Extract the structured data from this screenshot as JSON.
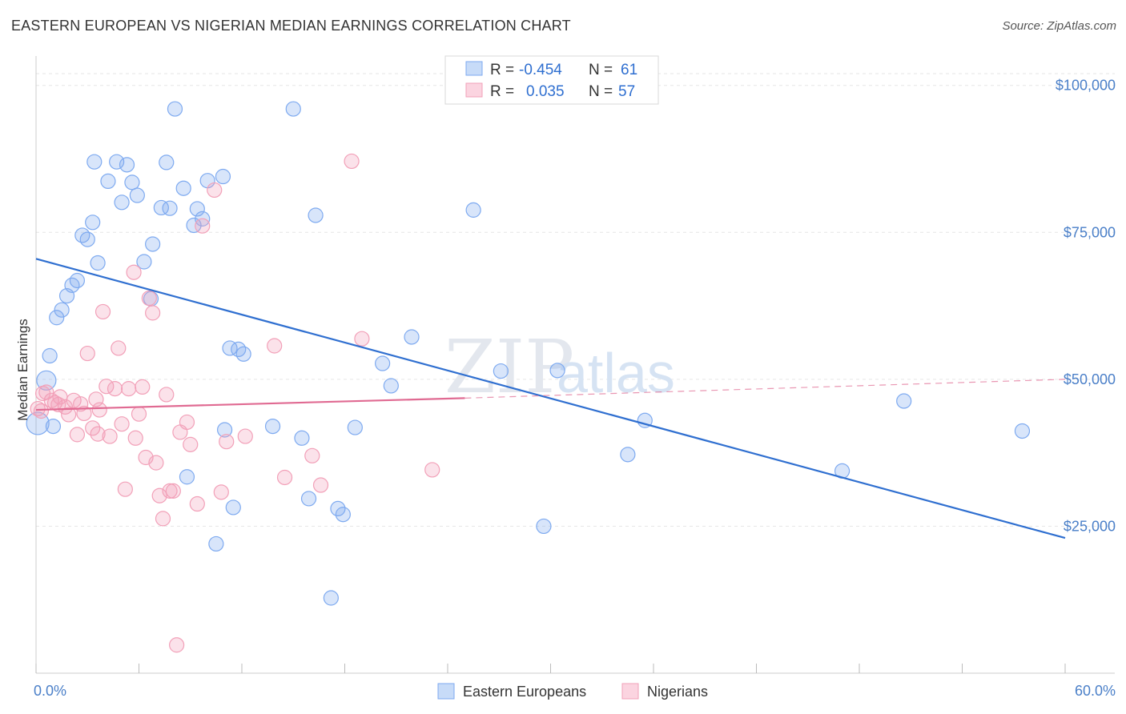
{
  "header": {
    "title": "EASTERN EUROPEAN VS NIGERIAN MEDIAN EARNINGS CORRELATION CHART",
    "source": "Source: ZipAtlas.com"
  },
  "watermark": {
    "zip": "ZIP",
    "atlas": "atlas"
  },
  "legend": {
    "rows": [
      {
        "r_label": "R =",
        "r_value": "-0.454",
        "n_label": "N =",
        "n_value": "61",
        "color": "#7eaaf0"
      },
      {
        "r_label": "R =",
        "r_value": "0.035",
        "n_label": "N =",
        "n_value": "57",
        "color": "#f2a0b8"
      }
    ]
  },
  "chart_data": {
    "type": "scatter",
    "title": "EASTERN EUROPEAN VS NIGERIAN MEDIAN EARNINGS CORRELATION CHART",
    "xlabel": "",
    "ylabel": "Median Earnings",
    "xlim": [
      0,
      60
    ],
    "ylim": [
      0,
      105000
    ],
    "x_tick_labels": [
      "0.0%",
      "60.0%"
    ],
    "y_ticks": [
      {
        "value": 25000,
        "label": "$25,000"
      },
      {
        "value": 50000,
        "label": "$50,000"
      },
      {
        "value": 75000,
        "label": "$75,000"
      },
      {
        "value": 100000,
        "label": "$100,000"
      }
    ],
    "grid": true,
    "legend_position": "top-center",
    "series": [
      {
        "name": "Eastern Europeans",
        "color": "#7eaaf0",
        "line_color": "#2f6fd0",
        "trend": {
          "x": [
            0,
            60
          ],
          "y": [
            70500,
            23000
          ]
        },
        "points": [
          [
            0.1,
            42500
          ],
          [
            0.6,
            49800
          ],
          [
            0.8,
            54000
          ],
          [
            1.2,
            60500
          ],
          [
            1.5,
            61800
          ],
          [
            1.8,
            64200
          ],
          [
            2.1,
            66000
          ],
          [
            2.4,
            66800
          ],
          [
            2.7,
            74500
          ],
          [
            3.0,
            73800
          ],
          [
            3.3,
            76700
          ],
          [
            3.6,
            69800
          ],
          [
            3.4,
            87000
          ],
          [
            4.2,
            83700
          ],
          [
            4.7,
            87000
          ],
          [
            5.0,
            80100
          ],
          [
            5.3,
            86500
          ],
          [
            5.6,
            83500
          ],
          [
            5.9,
            81300
          ],
          [
            6.3,
            70000
          ],
          [
            6.8,
            73000
          ],
          [
            6.7,
            63700
          ],
          [
            7.3,
            79200
          ],
          [
            7.6,
            86900
          ],
          [
            7.8,
            79100
          ],
          [
            8.1,
            96000
          ],
          [
            8.6,
            82500
          ],
          [
            9.2,
            76200
          ],
          [
            9.4,
            79000
          ],
          [
            9.7,
            77300
          ],
          [
            10.0,
            83800
          ],
          [
            10.9,
            84500
          ],
          [
            11.0,
            41400
          ],
          [
            11.3,
            55300
          ],
          [
            11.5,
            28200
          ],
          [
            11.8,
            55100
          ],
          [
            12.1,
            54300
          ],
          [
            10.5,
            22000
          ],
          [
            8.8,
            33400
          ],
          [
            13.8,
            42000
          ],
          [
            15.0,
            96000
          ],
          [
            15.5,
            40000
          ],
          [
            15.9,
            29700
          ],
          [
            16.3,
            77900
          ],
          [
            17.2,
            12800
          ],
          [
            17.6,
            28000
          ],
          [
            17.9,
            27000
          ],
          [
            18.6,
            41800
          ],
          [
            20.2,
            52700
          ],
          [
            20.7,
            48900
          ],
          [
            21.9,
            57200
          ],
          [
            25.5,
            78800
          ],
          [
            27.1,
            51400
          ],
          [
            29.6,
            25000
          ],
          [
            30.4,
            51500
          ],
          [
            34.5,
            37200
          ],
          [
            35.5,
            43000
          ],
          [
            47.0,
            34400
          ],
          [
            50.6,
            46300
          ],
          [
            57.5,
            41200
          ],
          [
            1.0,
            42000
          ]
        ]
      },
      {
        "name": "Nigerians",
        "color": "#f2a0b8",
        "line_color": "#e06a92",
        "trend": {
          "x": [
            0,
            25
          ],
          "y": [
            44800,
            46800
          ]
        },
        "trend_dashed": {
          "x": [
            25,
            60
          ],
          "y": [
            46800,
            50000
          ]
        },
        "points": [
          [
            0.1,
            45000
          ],
          [
            0.3,
            44600
          ],
          [
            0.6,
            47800
          ],
          [
            0.9,
            46400
          ],
          [
            1.1,
            46000
          ],
          [
            1.4,
            47000
          ],
          [
            1.7,
            45300
          ],
          [
            1.9,
            44000
          ],
          [
            2.2,
            46400
          ],
          [
            2.4,
            40600
          ],
          [
            2.8,
            44200
          ],
          [
            3.0,
            54400
          ],
          [
            3.3,
            41700
          ],
          [
            3.5,
            46600
          ],
          [
            3.7,
            44800
          ],
          [
            3.9,
            61500
          ],
          [
            4.1,
            48800
          ],
          [
            4.3,
            40300
          ],
          [
            4.6,
            48400
          ],
          [
            4.8,
            55300
          ],
          [
            5.0,
            42400
          ],
          [
            5.2,
            31300
          ],
          [
            5.4,
            48400
          ],
          [
            5.7,
            68200
          ],
          [
            5.8,
            40000
          ],
          [
            6.0,
            44100
          ],
          [
            6.2,
            48700
          ],
          [
            6.4,
            36700
          ],
          [
            6.6,
            63800
          ],
          [
            6.8,
            61300
          ],
          [
            7.0,
            35800
          ],
          [
            7.2,
            30200
          ],
          [
            7.4,
            26300
          ],
          [
            7.6,
            47400
          ],
          [
            7.8,
            31000
          ],
          [
            8.0,
            31000
          ],
          [
            8.2,
            4800
          ],
          [
            8.8,
            42700
          ],
          [
            9.0,
            38900
          ],
          [
            9.4,
            28800
          ],
          [
            9.7,
            76100
          ],
          [
            10.4,
            82200
          ],
          [
            10.8,
            30800
          ],
          [
            11.1,
            39400
          ],
          [
            12.2,
            40300
          ],
          [
            13.9,
            55700
          ],
          [
            14.5,
            33300
          ],
          [
            16.1,
            37000
          ],
          [
            16.6,
            32000
          ],
          [
            18.4,
            87100
          ],
          [
            19.0,
            56900
          ],
          [
            23.1,
            34600
          ],
          [
            0.4,
            47600
          ],
          [
            1.3,
            45700
          ],
          [
            2.6,
            45800
          ],
          [
            8.4,
            41000
          ],
          [
            3.6,
            40700
          ]
        ]
      }
    ]
  }
}
